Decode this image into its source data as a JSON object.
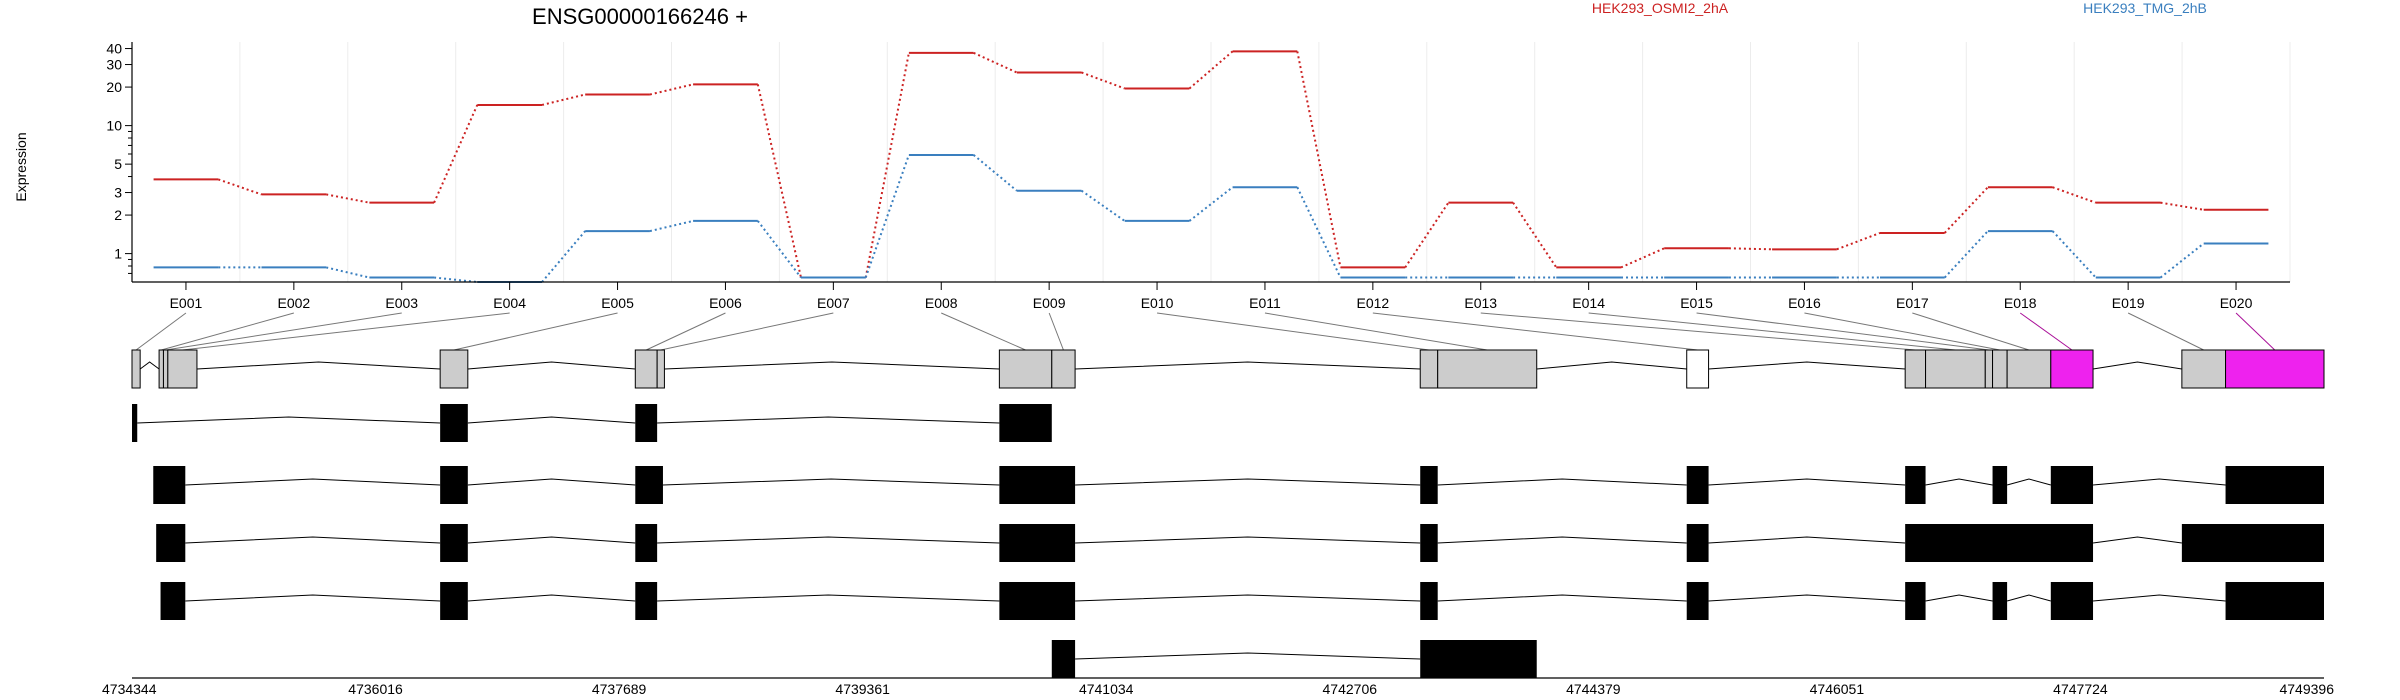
{
  "chart_data": {
    "type": "line",
    "title": "ENSG00000166246 +",
    "ylabel": "Expression",
    "xlabel": "",
    "y_scale": "log",
    "ylim": [
      0.6,
      45
    ],
    "y_ticks": [
      1,
      2,
      3,
      5,
      10,
      20,
      30,
      40
    ],
    "grid": "vertical, light",
    "legend": "top, inline",
    "categories": [
      "E001",
      "E002",
      "E003",
      "E004",
      "E005",
      "E006",
      "E007",
      "E008",
      "E009",
      "E010",
      "E011",
      "E012",
      "E013",
      "E014",
      "E015",
      "E016",
      "E017",
      "E018",
      "E019",
      "E020"
    ],
    "series": [
      {
        "name": "HEK293_OSMI2_2hA",
        "color": "#cc2222",
        "values": [
          3.8,
          2.9,
          2.5,
          14.5,
          17.5,
          21,
          0.65,
          37,
          26,
          19.5,
          38,
          0.78,
          2.5,
          0.78,
          1.1,
          1.08,
          1.45,
          3.3,
          2.5,
          2.2
        ]
      },
      {
        "name": "HEK293_TMG_2hB",
        "color": "#3a7fbf",
        "values": [
          0.78,
          0.78,
          0.65,
          0.6,
          1.5,
          1.8,
          0.65,
          5.9,
          3.1,
          1.8,
          3.3,
          0.65,
          0.65,
          0.65,
          0.65,
          0.65,
          0.65,
          1.5,
          0.65,
          1.2
        ]
      }
    ],
    "genomic_axis": {
      "range": [
        4734344,
        4749396
      ],
      "tick_labels": [
        "4734344",
        "4736016",
        "4737689",
        "4739361",
        "4741034",
        "4742706",
        "4744379",
        "4746051",
        "4747724",
        "4749396"
      ]
    },
    "exons": [
      {
        "id": "E001",
        "start": 4734344,
        "end": 4734400,
        "fill": "#cccccc"
      },
      {
        "id": "E002",
        "start": 4734530,
        "end": 4734560,
        "fill": "#cccccc"
      },
      {
        "id": "E003",
        "start": 4734560,
        "end": 4734590,
        "fill": "#cccccc"
      },
      {
        "id": "E004",
        "start": 4734590,
        "end": 4734790,
        "fill": "#cccccc"
      },
      {
        "id": "E005",
        "start": 4736460,
        "end": 4736650,
        "fill": "#cccccc"
      },
      {
        "id": "E006",
        "start": 4737800,
        "end": 4737950,
        "fill": "#cccccc"
      },
      {
        "id": "E007",
        "start": 4737950,
        "end": 4738000,
        "fill": "#cccccc"
      },
      {
        "id": "E008",
        "start": 4740300,
        "end": 4740660,
        "fill": "#cccccc"
      },
      {
        "id": "E009",
        "start": 4740660,
        "end": 4740820,
        "fill": "#cccccc"
      },
      {
        "id": "E010",
        "start": 4743190,
        "end": 4743310,
        "fill": "#cccccc"
      },
      {
        "id": "E011",
        "start": 4743310,
        "end": 4743990,
        "fill": "#cccccc"
      },
      {
        "id": "E012",
        "start": 4745020,
        "end": 4745170,
        "fill": "#ffffff"
      },
      {
        "id": "E013",
        "start": 4746520,
        "end": 4746660,
        "fill": "#cccccc"
      },
      {
        "id": "E014",
        "start": 4746660,
        "end": 4747070,
        "fill": "#cccccc"
      },
      {
        "id": "E015",
        "start": 4747070,
        "end": 4747120,
        "fill": "#cccccc"
      },
      {
        "id": "E016",
        "start": 4747120,
        "end": 4747220,
        "fill": "#cccccc"
      },
      {
        "id": "E017",
        "start": 4747220,
        "end": 4747520,
        "fill": "#cccccc"
      },
      {
        "id": "E018",
        "start": 4747520,
        "end": 4747810,
        "fill": "#ee22ee"
      },
      {
        "id": "E019",
        "start": 4748420,
        "end": 4748720,
        "fill": "#cccccc"
      },
      {
        "id": "E020",
        "start": 4748720,
        "end": 4749396,
        "fill": "#ee22ee"
      }
    ],
    "transcripts": [
      [
        [
          4734344,
          4734380
        ],
        [
          4736460,
          4736650
        ],
        [
          4737800,
          4737950
        ],
        [
          4740300,
          4740660
        ]
      ],
      [
        [
          4734490,
          4734710
        ],
        [
          4736460,
          4736650
        ],
        [
          4737800,
          4737990
        ],
        [
          4740300,
          4740820
        ],
        [
          4743190,
          4743310
        ],
        [
          4745020,
          4745170
        ],
        [
          4746520,
          4746660
        ],
        [
          4747120,
          4747220
        ],
        [
          4747520,
          4747810
        ],
        [
          4748720,
          4749396
        ]
      ],
      [
        [
          4734510,
          4734710
        ],
        [
          4736460,
          4736650
        ],
        [
          4737800,
          4737950
        ],
        [
          4740300,
          4740820
        ],
        [
          4743190,
          4743310
        ],
        [
          4745020,
          4745170
        ],
        [
          4746520,
          4747810
        ],
        [
          4748420,
          4749396
        ]
      ],
      [
        [
          4734540,
          4734710
        ],
        [
          4736460,
          4736650
        ],
        [
          4737800,
          4737950
        ],
        [
          4740300,
          4740820
        ],
        [
          4743190,
          4743310
        ],
        [
          4745020,
          4745170
        ],
        [
          4746520,
          4746660
        ],
        [
          4747120,
          4747220
        ],
        [
          4747520,
          4747810
        ],
        [
          4748720,
          4749396
        ]
      ],
      [
        [
          4740660,
          4740820
        ],
        [
          4743190,
          4743990
        ]
      ]
    ]
  }
}
